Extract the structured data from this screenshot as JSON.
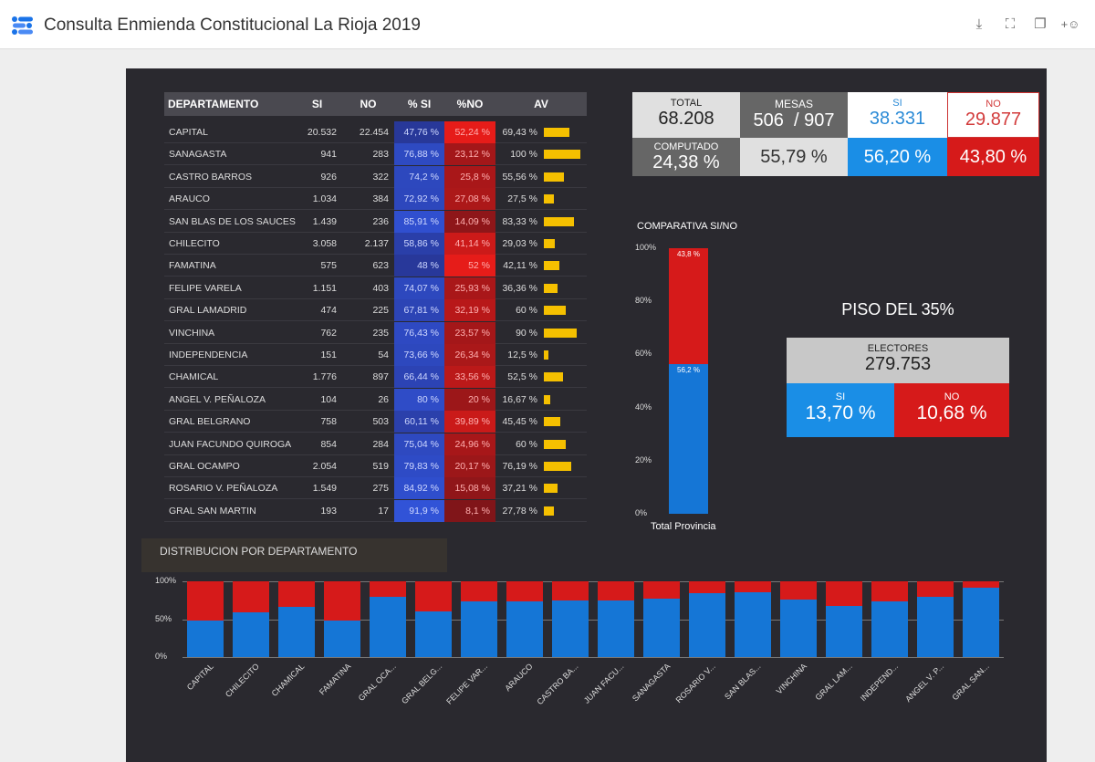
{
  "header": {
    "title": "Consulta Enmienda Constitucional La Rioja 2019",
    "icons": [
      "download-icon",
      "fullscreen-icon",
      "copy-icon",
      "add-person-icon"
    ]
  },
  "colors": {
    "si": "#1576d6",
    "no": "#d61a1a",
    "av": "#f5c000",
    "panel": "#2a292f"
  },
  "table": {
    "headers": [
      "DEPARTAMENTO",
      "SI",
      "NO",
      "% SI",
      "%NO",
      "AV"
    ],
    "rows": [
      [
        "CAPITAL",
        "20.532",
        "22.454",
        "47,76 %",
        "52,24 %",
        "69,43 %"
      ],
      [
        "SANAGASTA",
        "941",
        "283",
        "76,88 %",
        "23,12 %",
        "100 %"
      ],
      [
        "CASTRO BARROS",
        "926",
        "322",
        "74,2 %",
        "25,8 %",
        "55,56 %"
      ],
      [
        "ARAUCO",
        "1.034",
        "384",
        "72,92 %",
        "27,08 %",
        "27,5 %"
      ],
      [
        "SAN BLAS DE LOS SAUCES",
        "1.439",
        "236",
        "85,91 %",
        "14,09 %",
        "83,33 %"
      ],
      [
        "CHILECITO",
        "3.058",
        "2.137",
        "58,86 %",
        "41,14 %",
        "29,03 %"
      ],
      [
        "FAMATINA",
        "575",
        "623",
        "48 %",
        "52 %",
        "42,11 %"
      ],
      [
        "FELIPE VARELA",
        "1.151",
        "403",
        "74,07 %",
        "25,93 %",
        "36,36 %"
      ],
      [
        "GRAL LAMADRID",
        "474",
        "225",
        "67,81 %",
        "32,19 %",
        "60 %"
      ],
      [
        "VINCHINA",
        "762",
        "235",
        "76,43 %",
        "23,57 %",
        "90 %"
      ],
      [
        "INDEPENDENCIA",
        "151",
        "54",
        "73,66 %",
        "26,34 %",
        "12,5 %"
      ],
      [
        "CHAMICAL",
        "1.776",
        "897",
        "66,44 %",
        "33,56 %",
        "52,5 %"
      ],
      [
        "ANGEL V. PEÑALOZA",
        "104",
        "26",
        "80 %",
        "20 %",
        "16,67 %"
      ],
      [
        "GRAL BELGRANO",
        "758",
        "503",
        "60,11 %",
        "39,89 %",
        "45,45 %"
      ],
      [
        "JUAN FACUNDO QUIROGA",
        "854",
        "284",
        "75,04 %",
        "24,96 %",
        "60 %"
      ],
      [
        "GRAL OCAMPO",
        "2.054",
        "519",
        "79,83 %",
        "20,17 %",
        "76,19 %"
      ],
      [
        "ROSARIO V. PEÑALOZA",
        "1.549",
        "275",
        "84,92 %",
        "15,08 %",
        "37,21 %"
      ],
      [
        "GRAL SAN MARTIN",
        "193",
        "17",
        "91,9 %",
        "8,1 %",
        "27,78 %"
      ]
    ]
  },
  "summary": {
    "total_label": "TOTAL",
    "total": "68.208",
    "mesas_label": "MESAS",
    "mesas": "506  / 907",
    "si_label": "SI",
    "si": "38.331",
    "no_label": "NO",
    "no": "29.877",
    "computado_label": "COMPUTADO",
    "computado": "24,38 %",
    "mesas_pct": "55,79 %",
    "si_pct": "56,20 %",
    "no_pct": "43,80 %"
  },
  "piso": {
    "title": "PISO DEL 35%",
    "electores_label": "ELECTORES",
    "electores": "279.753",
    "si_label": "SI",
    "si": "13,70 %",
    "no_label": "NO",
    "no": "10,68 %"
  },
  "chart_data": [
    {
      "type": "bar",
      "stacked": true,
      "title": "COMPARATIVA SI/NO",
      "categories": [
        "Total Provincia"
      ],
      "series": [
        {
          "values": [
            56.2
          ],
          "color": "#1576d6"
        },
        {
          "values": [
            43.8
          ],
          "color": "#d61a1a"
        }
      ],
      "data_labels": [
        "56,2 %",
        "43,8 %"
      ],
      "yticks": [
        "0%",
        "20%",
        "40%",
        "60%",
        "80%",
        "100%"
      ],
      "ylim": [
        0,
        100
      ]
    },
    {
      "type": "bar",
      "stacked": true,
      "title": "DISTRIBUCION POR DEPARTAMENTO",
      "categories": [
        "CAPITAL",
        "CHILECITO",
        "CHAMICAL",
        "FAMATINA",
        "GRAL OCA...",
        "GRAL BELG...",
        "FELIPE VAR...",
        "ARAUCO",
        "CASTRO BA...",
        "JUAN FACU...",
        "SANAGASTA",
        "ROSARIO V...",
        "SAN BLAS...",
        "VINCHINA",
        "GRAL LAM...",
        "INDEPEND...",
        "ANGEL V. P...",
        "GRAL SAN..."
      ],
      "series": [
        {
          "values": [
            47.76,
            58.86,
            66.44,
            48,
            79.83,
            60.11,
            74.07,
            72.92,
            74.2,
            75.04,
            76.88,
            84.92,
            85.91,
            76.43,
            67.81,
            73.66,
            80,
            91.9
          ],
          "color": "#1576d6"
        },
        {
          "values": [
            52.24,
            41.14,
            33.56,
            52,
            20.17,
            39.89,
            25.93,
            27.08,
            25.8,
            24.96,
            23.12,
            15.08,
            14.09,
            23.57,
            32.19,
            26.34,
            20,
            8.1
          ],
          "color": "#d61a1a"
        }
      ],
      "yticks": [
        "0%",
        "50%",
        "100%"
      ],
      "ylim": [
        0,
        100
      ]
    }
  ]
}
